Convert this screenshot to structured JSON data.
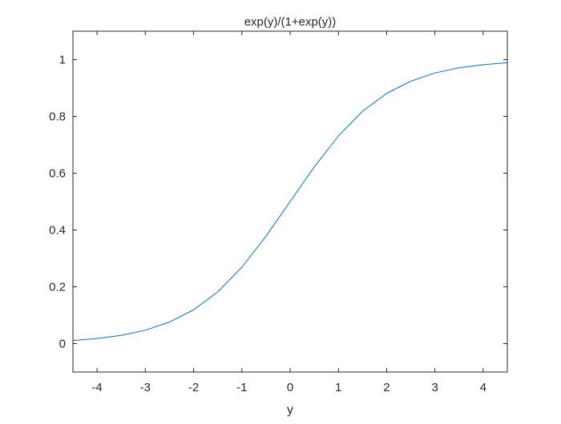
{
  "chart_data": {
    "type": "line",
    "title": "exp(y)/(1+exp(y))",
    "xlabel": "y",
    "ylabel": "",
    "xlim": [
      -4.5,
      4.5
    ],
    "ylim": [
      -0.1,
      1.1
    ],
    "xticks": [
      -4,
      -3,
      -2,
      -1,
      0,
      1,
      2,
      3,
      4
    ],
    "xtick_labels": [
      "-4",
      "-3",
      "-2",
      "-1",
      "0",
      "1",
      "2",
      "3",
      "4"
    ],
    "yticks": [
      0,
      0.2,
      0.4,
      0.6,
      0.8,
      1
    ],
    "ytick_labels": [
      "0",
      "0.2",
      "0.4",
      "0.6",
      "0.8",
      "1"
    ],
    "grid": false,
    "box": true,
    "series": [
      {
        "color": "#0072BD",
        "x": [
          -4.5,
          -4.0,
          -3.5,
          -3.0,
          -2.5,
          -2.0,
          -1.5,
          -1.0,
          -0.5,
          0.0,
          0.5,
          1.0,
          1.5,
          2.0,
          2.5,
          3.0,
          3.5,
          4.0,
          4.5
        ],
        "y": [
          0.011,
          0.018,
          0.029,
          0.047,
          0.076,
          0.119,
          0.182,
          0.269,
          0.378,
          0.5,
          0.622,
          0.731,
          0.818,
          0.881,
          0.924,
          0.953,
          0.971,
          0.982,
          0.989
        ]
      }
    ]
  }
}
